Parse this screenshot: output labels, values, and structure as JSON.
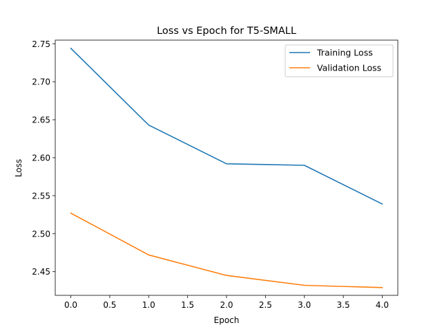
{
  "chart_data": {
    "type": "line",
    "title": "Loss vs Epoch for T5-SMALL",
    "xlabel": "Epoch",
    "ylabel": "Loss",
    "x": [
      0,
      1,
      2,
      3,
      4
    ],
    "series": [
      {
        "name": "Training Loss",
        "color": "#1f77b4",
        "values": [
          2.744,
          2.643,
          2.592,
          2.59,
          2.539
        ]
      },
      {
        "name": "Validation Loss",
        "color": "#ff7f0e",
        "values": [
          2.527,
          2.472,
          2.445,
          2.432,
          2.429
        ]
      }
    ],
    "xlim": [
      -0.2,
      4.2
    ],
    "ylim": [
      2.4188,
      2.7548
    ],
    "xticks": [
      0,
      0.5,
      1,
      1.5,
      2,
      2.5,
      3,
      3.5,
      4
    ],
    "xtick_labels": [
      "0.0",
      "0.5",
      "1.0",
      "1.5",
      "2.0",
      "2.5",
      "3.0",
      "3.5",
      "4.0"
    ],
    "yticks": [
      2.45,
      2.5,
      2.55,
      2.6,
      2.65,
      2.7,
      2.75
    ],
    "ytick_labels": [
      "2.45",
      "2.50",
      "2.55",
      "2.60",
      "2.65",
      "2.70",
      "2.75"
    ],
    "grid": false,
    "legend_position": "top-right"
  }
}
